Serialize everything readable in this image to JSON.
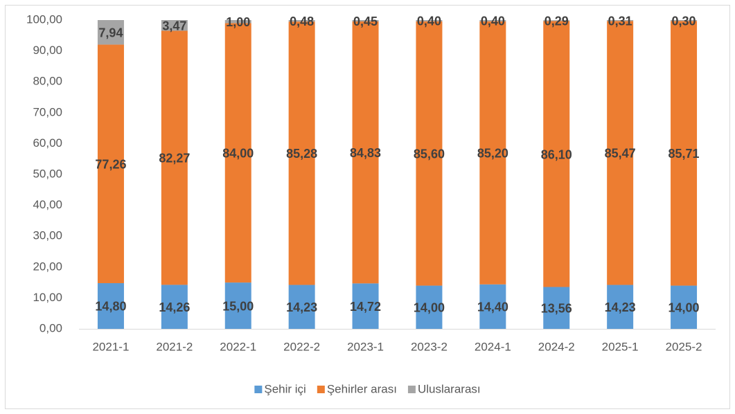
{
  "chart_data": {
    "type": "stacked_bar",
    "categories": [
      "2021-1",
      "2021-2",
      "2022-1",
      "2022-2",
      "2023-1",
      "2023-2",
      "2024-1",
      "2024-2",
      "2025-1",
      "2025-2"
    ],
    "series": [
      {
        "name": "Şehir içi",
        "color": "#5b9bd5",
        "values": [
          14.8,
          14.26,
          15.0,
          14.23,
          14.72,
          14.0,
          14.4,
          13.56,
          14.23,
          14.0
        ],
        "value_labels": [
          "14,80",
          "14,26",
          "15,00",
          "14,23",
          "14,72",
          "14,00",
          "14,40",
          "13,56",
          "14,23",
          "14,00"
        ]
      },
      {
        "name": "Şehirler arası",
        "color": "#ed7d31",
        "values": [
          77.26,
          82.27,
          84.0,
          85.28,
          84.83,
          85.6,
          85.2,
          86.1,
          85.47,
          85.71
        ],
        "value_labels": [
          "77,26",
          "82,27",
          "84,00",
          "85,28",
          "84,83",
          "85,60",
          "85,20",
          "86,10",
          "85,47",
          "85,71"
        ]
      },
      {
        "name": "Uluslararası",
        "color": "#a5a5a5",
        "values": [
          7.94,
          3.47,
          1.0,
          0.48,
          0.45,
          0.4,
          0.4,
          0.29,
          0.31,
          0.3
        ],
        "value_labels": [
          "7,94",
          "3,47",
          "1,00",
          "0,48",
          "0,45",
          "0,40",
          "0,40",
          "0,29",
          "0,31",
          "0,30"
        ]
      }
    ],
    "ylim": [
      0,
      100
    ],
    "yticks": [
      {
        "value": 0,
        "label": "0,00"
      },
      {
        "value": 10,
        "label": "10,00"
      },
      {
        "value": 20,
        "label": "20,00"
      },
      {
        "value": 30,
        "label": "30,00"
      },
      {
        "value": 40,
        "label": "40,00"
      },
      {
        "value": 50,
        "label": "50,00"
      },
      {
        "value": 60,
        "label": "60,00"
      },
      {
        "value": 70,
        "label": "70,00"
      },
      {
        "value": 80,
        "label": "80,00"
      },
      {
        "value": 90,
        "label": "90,00"
      },
      {
        "value": 100,
        "label": "100,00"
      }
    ],
    "grid": false,
    "legend": "bottom"
  }
}
